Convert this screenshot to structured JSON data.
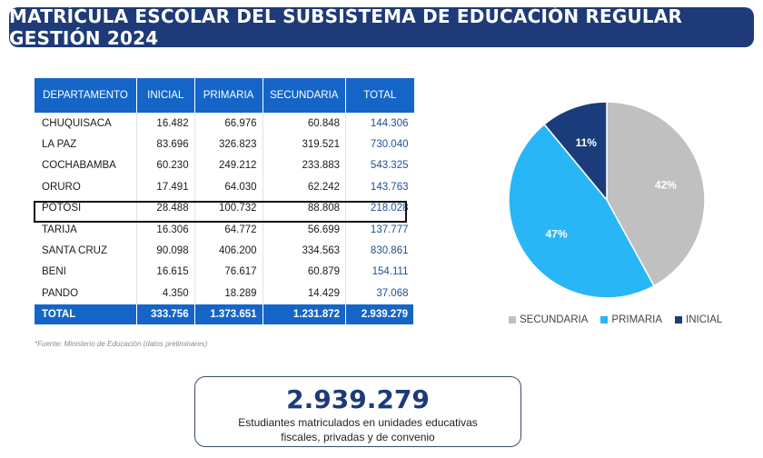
{
  "title": "MATRÍCULA ESCOLAR DEL SUBSISTEMA DE EDUCACIÓN REGULAR GESTIÓN 2024",
  "table": {
    "headers": [
      "DEPARTAMENTO",
      "INICIAL",
      "PRIMARIA",
      "SECUNDARIA",
      "TOTAL"
    ],
    "rows": [
      [
        "CHUQUISACA",
        "16.482",
        "66.976",
        "60.848",
        "144.306"
      ],
      [
        "LA PAZ",
        "83.696",
        "326.823",
        "319.521",
        "730.040"
      ],
      [
        "COCHABAMBA",
        "60.230",
        "249.212",
        "233.883",
        "543.325"
      ],
      [
        "ORURO",
        "17.491",
        "64.030",
        "62.242",
        "143.763"
      ],
      [
        "POTOSÍ",
        "28.488",
        "100.732",
        "88.808",
        "218.028"
      ],
      [
        "TARIJA",
        "16.306",
        "64.772",
        "56.699",
        "137.777"
      ],
      [
        "SANTA CRUZ",
        "90.098",
        "406.200",
        "334.563",
        "830.861"
      ],
      [
        "BENI",
        "16.615",
        "76.617",
        "60.879",
        "154.111"
      ],
      [
        "PANDO",
        "4.350",
        "18.289",
        "14.429",
        "37.068"
      ]
    ],
    "total_row": [
      "TOTAL",
      "333.756",
      "1.373.651",
      "1.231.872",
      "2.939.279"
    ],
    "highlighted_row": 4
  },
  "footnote": "*Fuente: Ministerio de Educación (datos preliminares)",
  "chart_data": {
    "type": "pie",
    "slices": [
      {
        "label": "SECUNDARIA",
        "value": 42,
        "display": "42%",
        "color": "#c0c0c0"
      },
      {
        "label": "PRIMARIA",
        "value": 47,
        "display": "47%",
        "color": "#29b6f6"
      },
      {
        "label": "INICIAL",
        "value": 11,
        "display": "11%",
        "color": "#1a3c7a"
      }
    ],
    "legend_position": "bottom"
  },
  "summary": {
    "total": "2.939.279",
    "caption_line1": "Estudiantes matriculados en unidades educativas",
    "caption_line2": "fiscales, privadas y de convenio"
  }
}
